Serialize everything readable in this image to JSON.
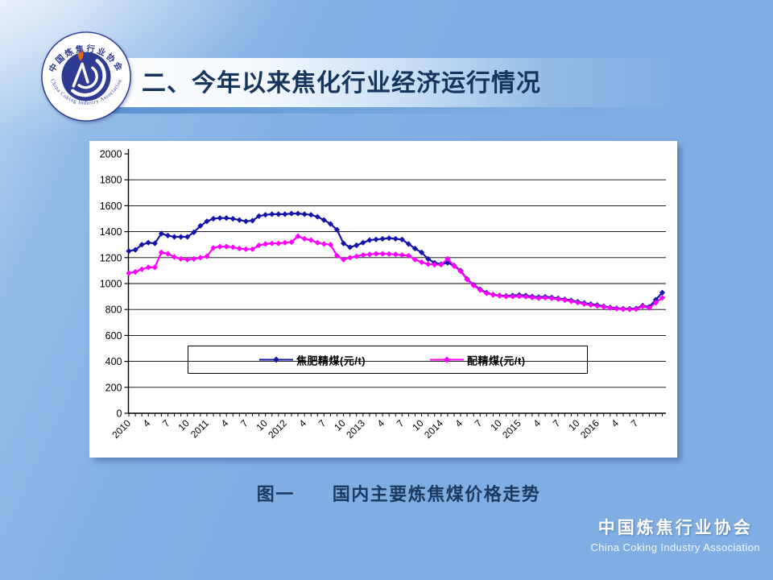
{
  "slide": {
    "title": "二、今年以来焦化行业经济运行情况",
    "caption": "图一　　国内主要炼焦煤价格走势",
    "footer": {
      "org_cn": "中国炼焦行业协会",
      "org_en": "China Coking Industry Association"
    },
    "logo": {
      "ring_cn": "中国炼焦行业协会",
      "ring_en": "China Coking Industry Association"
    }
  },
  "chart_data": {
    "type": "line",
    "title": "",
    "xlabel": "",
    "ylabel": "",
    "ylim": [
      0,
      2000
    ],
    "ytick_step": 200,
    "y_ticks": [
      0,
      200,
      400,
      600,
      800,
      1000,
      1200,
      1400,
      1600,
      1800,
      2000
    ],
    "grid": "horizontal-black",
    "legend_position": "inside-lower-middle",
    "x_start": "2010-01",
    "x_end": "2016-11",
    "x_interval": "monthly",
    "x_tick_label_every": 3,
    "x_tick_labels": [
      "2010",
      "4",
      "7",
      "10",
      "2011",
      "4",
      "7",
      "10",
      "2012",
      "4",
      "7",
      "10",
      "2013",
      "4",
      "7",
      "10",
      "2014",
      "4",
      "7",
      "10",
      "2015",
      "4",
      "7",
      "10",
      "2016",
      "4",
      "7"
    ],
    "series": [
      {
        "name": "焦肥精煤(元/t)",
        "color": "#1414AA",
        "marker": "diamond",
        "values": [
          1250,
          1260,
          1300,
          1315,
          1310,
          1385,
          1370,
          1360,
          1360,
          1360,
          1395,
          1445,
          1480,
          1500,
          1505,
          1505,
          1500,
          1490,
          1480,
          1485,
          1520,
          1530,
          1535,
          1535,
          1535,
          1540,
          1540,
          1535,
          1530,
          1515,
          1490,
          1460,
          1415,
          1310,
          1280,
          1295,
          1315,
          1335,
          1340,
          1345,
          1350,
          1345,
          1340,
          1305,
          1270,
          1240,
          1190,
          1160,
          1150,
          1160,
          1140,
          1100,
          1035,
          990,
          955,
          930,
          915,
          908,
          905,
          908,
          912,
          908,
          900,
          895,
          898,
          893,
          886,
          878,
          870,
          860,
          850,
          842,
          835,
          825,
          816,
          810,
          806,
          805,
          808,
          830,
          820,
          875,
          930
        ]
      },
      {
        "name": "配精煤(元/t)",
        "color": "#FF00FF",
        "marker": "diamond",
        "values": [
          1080,
          1090,
          1110,
          1125,
          1125,
          1240,
          1230,
          1205,
          1190,
          1185,
          1190,
          1200,
          1210,
          1275,
          1285,
          1285,
          1280,
          1270,
          1265,
          1265,
          1295,
          1305,
          1310,
          1310,
          1315,
          1320,
          1365,
          1345,
          1335,
          1315,
          1305,
          1300,
          1215,
          1185,
          1200,
          1210,
          1220,
          1225,
          1230,
          1230,
          1228,
          1225,
          1220,
          1215,
          1185,
          1165,
          1150,
          1145,
          1145,
          1190,
          1135,
          1095,
          1030,
          985,
          950,
          925,
          912,
          905,
          900,
          900,
          902,
          898,
          892,
          887,
          890,
          886,
          880,
          872,
          863,
          853,
          843,
          835,
          828,
          820,
          812,
          806,
          802,
          800,
          803,
          824,
          812,
          852,
          890
        ]
      }
    ]
  }
}
